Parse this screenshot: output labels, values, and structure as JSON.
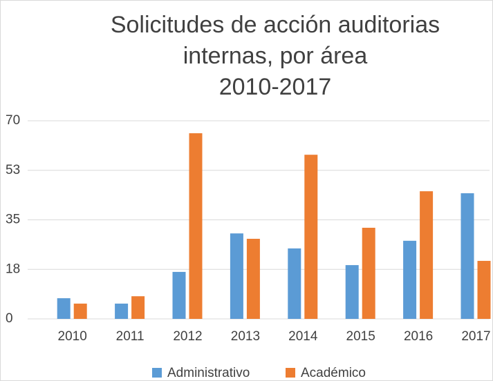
{
  "chart_data": {
    "type": "bar",
    "title": [
      "Solicitudes de acción auditorias",
      "internas, por área",
      "2010-2017"
    ],
    "categories": [
      "2010",
      "2011",
      "2012",
      "2013",
      "2014",
      "2015",
      "2016",
      "2017"
    ],
    "series": [
      {
        "name": "Administrativo",
        "color": "#5b9bd5",
        "values": [
          7.3,
          5.4,
          16.6,
          30.2,
          24.9,
          19,
          27.6,
          44.4
        ]
      },
      {
        "name": "Académico",
        "color": "#ed7d31",
        "values": [
          5.4,
          8,
          65.6,
          28.3,
          58,
          32.2,
          45.1,
          20.5
        ]
      }
    ],
    "ylim": [
      0,
      70
    ],
    "yticks": [
      0,
      {
        "value": 17.5,
        "label": "18"
      },
      35,
      {
        "value": 52.5,
        "label": "53"
      },
      70
    ],
    "grid": true,
    "legend": "bottom"
  }
}
